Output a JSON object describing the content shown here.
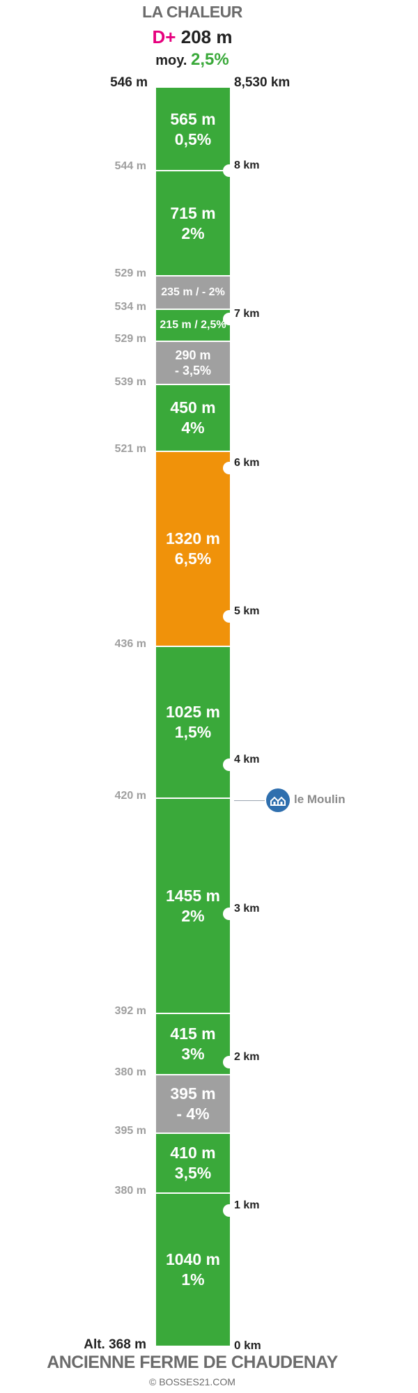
{
  "header": {
    "title": "LA CHALEUR",
    "dplus_prefix": "D+",
    "dplus_value": "208 m",
    "avg_prefix": "moy.",
    "avg_value": "2,5%",
    "top_altitude": "546 m",
    "top_distance": "8,530 km"
  },
  "segments": [
    {
      "length": "565 m",
      "grade": "0,5%",
      "color": "#3aa93a"
    },
    {
      "length": "715 m",
      "grade": "2%",
      "color": "#3aa93a"
    },
    {
      "length": "235 m / - 2%",
      "grade": "",
      "color": "#a0a0a0"
    },
    {
      "length": "215 m / 2,5%",
      "grade": "",
      "color": "#3aa93a"
    },
    {
      "length": "290 m",
      "grade": "- 3,5%",
      "color": "#a0a0a0"
    },
    {
      "length": "450 m",
      "grade": "4%",
      "color": "#3aa93a"
    },
    {
      "length": "1320 m",
      "grade": "6,5%",
      "color": "#f0920a"
    },
    {
      "length": "1025 m",
      "grade": "1,5%",
      "color": "#3aa93a"
    },
    {
      "length": "1455 m",
      "grade": "2%",
      "color": "#3aa93a"
    },
    {
      "length": "415 m",
      "grade": "3%",
      "color": "#3aa93a"
    },
    {
      "length": "395 m",
      "grade": "- 4%",
      "color": "#a0a0a0"
    },
    {
      "length": "410 m",
      "grade": "3,5%",
      "color": "#3aa93a"
    },
    {
      "length": "1040 m",
      "grade": "1%",
      "color": "#3aa93a"
    }
  ],
  "altitudes": [
    "544 m",
    "529 m",
    "534 m",
    "529 m",
    "539 m",
    "521 m",
    "436 m",
    "420 m",
    "392 m",
    "380 m",
    "395 m",
    "380 m"
  ],
  "km_markers": [
    "8 km",
    "7 km",
    "6 km",
    "5 km",
    "4 km",
    "3 km",
    "2 km",
    "1 km"
  ],
  "poi": {
    "label": "le Moulin"
  },
  "footer": {
    "start_altitude": "Alt. 368 m",
    "start_distance": "0 km",
    "start_name": "ANCIENNE FERME DE CHAUDENAY",
    "credit": "© BOSSES21.COM"
  }
}
